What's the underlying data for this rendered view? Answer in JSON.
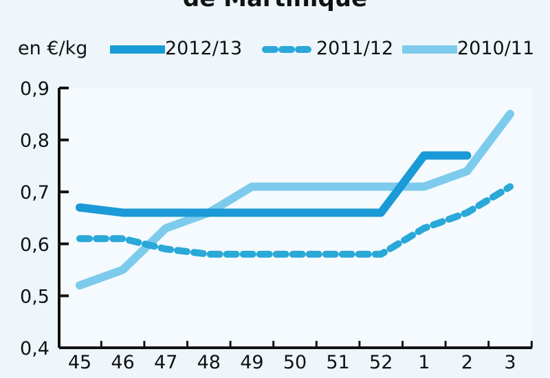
{
  "chart_data": {
    "type": "line",
    "title": "de Martinique",
    "ylabel": "en €/kg",
    "xlabel": "",
    "categories": [
      "45",
      "46",
      "47",
      "48",
      "49",
      "50",
      "51",
      "52",
      "1",
      "2",
      "3"
    ],
    "ylim": [
      0.4,
      0.9
    ],
    "yticks": [
      "0,4",
      "0,5",
      "0,6",
      "0,7",
      "0,8",
      "0,9"
    ],
    "series": [
      {
        "name": "2012/13",
        "style": "solid-thick",
        "color": "#1a9ad6",
        "values": [
          0.67,
          0.66,
          0.66,
          0.66,
          0.66,
          0.66,
          0.66,
          0.66,
          0.77,
          0.77,
          null
        ]
      },
      {
        "name": "2011/12",
        "style": "dashed",
        "color": "#2aa8d8",
        "values": [
          0.61,
          0.61,
          0.59,
          0.58,
          0.58,
          0.58,
          0.58,
          0.58,
          0.63,
          0.66,
          0.71
        ]
      },
      {
        "name": "2010/11",
        "style": "solid-light",
        "color": "#7ccbec",
        "values": [
          0.52,
          0.55,
          0.63,
          0.66,
          0.71,
          0.71,
          0.71,
          0.71,
          0.71,
          0.74,
          0.85
        ]
      }
    ],
    "legend_position": "top",
    "grid": false
  }
}
